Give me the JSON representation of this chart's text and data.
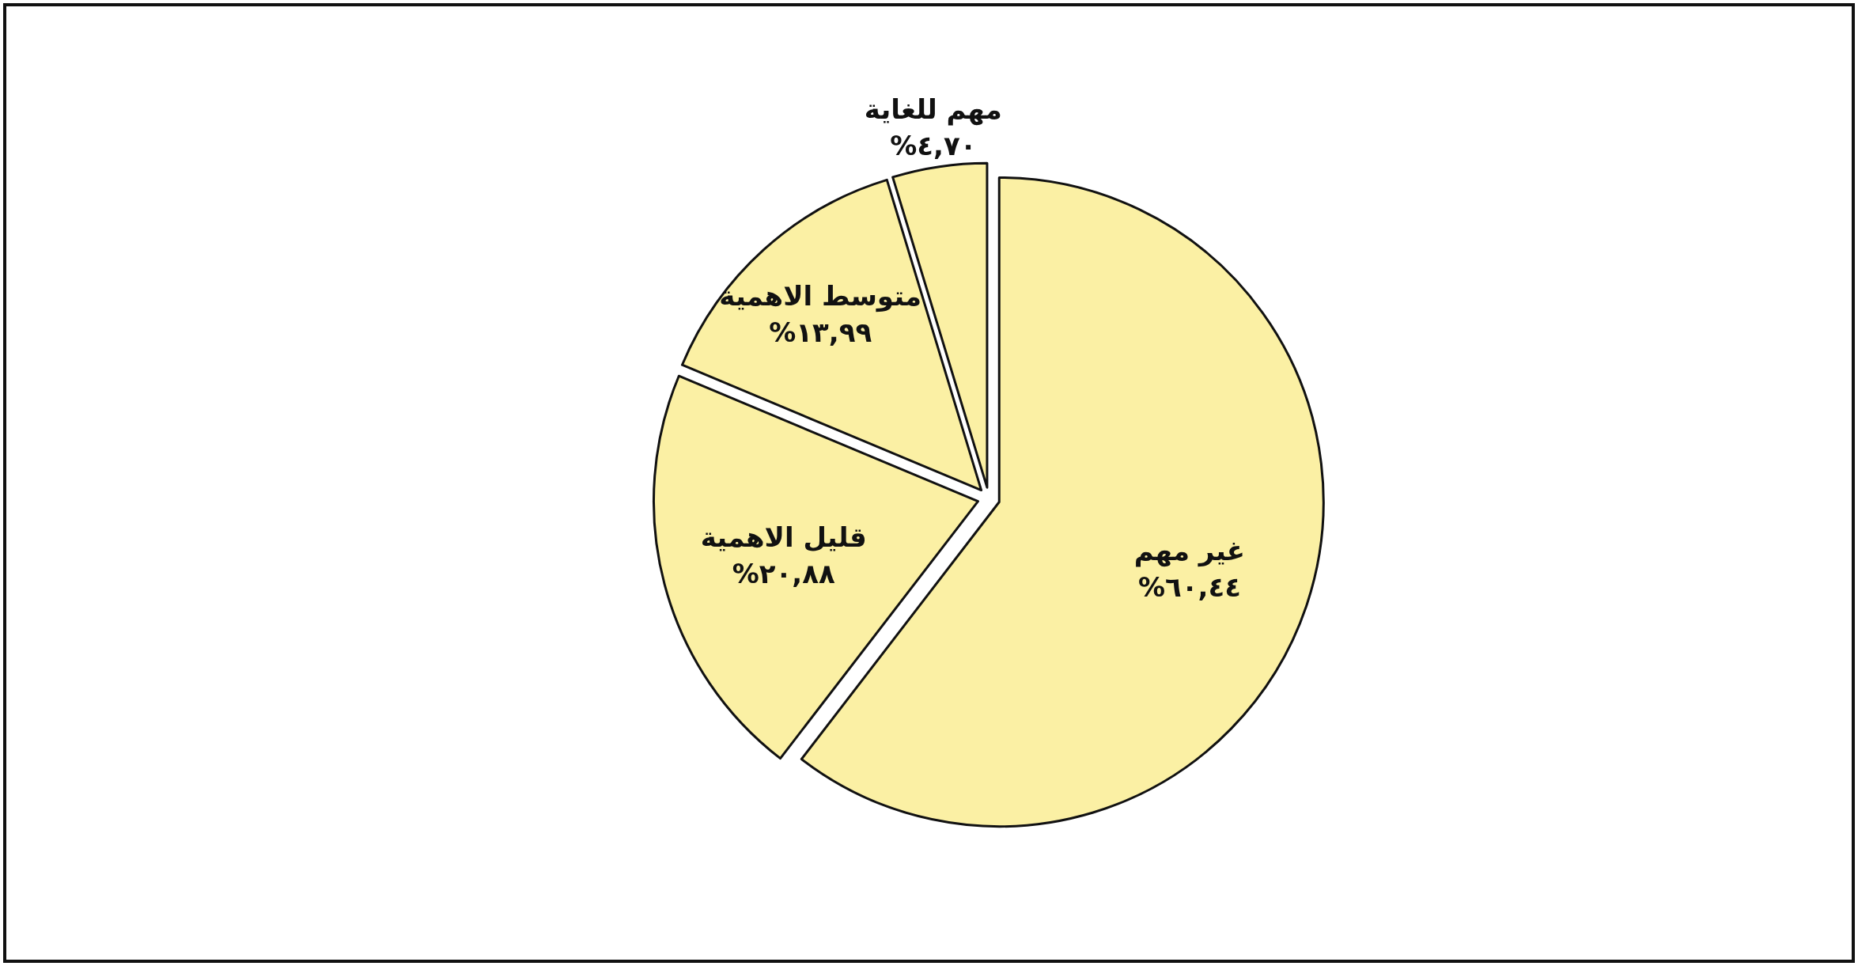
{
  "chart_data": {
    "type": "pie",
    "categories": [
      "غير مهم",
      "قليل الاهمية",
      "متوسط الاهمية",
      "مهم للغاية"
    ],
    "values": [
      60.44,
      20.88,
      13.99,
      4.7
    ],
    "colors": [
      "#fbf0a4",
      "#fbf0a4",
      "#fbf0a4",
      "#fbf0a4"
    ],
    "value_labels": [
      "%٦٠,٤٤",
      "%٢٠,٨٨",
      "%١٣,٩٩",
      "%٤,٧٠"
    ]
  }
}
